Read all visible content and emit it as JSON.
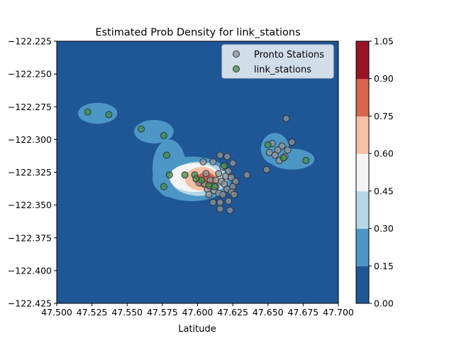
{
  "chart_data": {
    "type": "scatter",
    "title": "Estimated Prob Density for link_stations",
    "xlabel": "Latitude",
    "ylabel": "",
    "xlim": [
      47.5,
      47.7
    ],
    "ylim": [
      -122.425,
      -122.225
    ],
    "x_ticks": [
      "47.500",
      "47.525",
      "47.550",
      "47.575",
      "47.600",
      "47.625",
      "47.650",
      "47.675",
      "47.700"
    ],
    "y_ticks": [
      "−122.225",
      "−122.250",
      "−122.275",
      "−122.300",
      "−122.325",
      "−122.350",
      "−122.375",
      "−122.400",
      "−122.425"
    ],
    "grid": false,
    "legend_position": "top-right",
    "legend": [
      {
        "label": "Pronto Stations",
        "color": "#8f969b"
      },
      {
        "label": "link_stations",
        "color": "#3f8f4a"
      }
    ],
    "colorbar": {
      "ticks": [
        "0.00",
        "0.15",
        "0.30",
        "0.45",
        "0.60",
        "0.75",
        "0.90",
        "1.05"
      ],
      "levels": [
        0,
        0.15,
        0.3,
        0.45,
        0.6,
        0.75,
        0.9,
        1.05
      ],
      "colors": [
        "#1f5696",
        "#4c97c6",
        "#b6d6e7",
        "#f4f4f4",
        "#f6c0a4",
        "#d8654f",
        "#9a1428"
      ]
    },
    "density_blobs": [
      {
        "x": 47.606,
        "y": -122.331,
        "rx": 0.007,
        "ry": 0.006,
        "level": 5
      },
      {
        "x": 47.603,
        "y": -122.33,
        "rx": 0.012,
        "ry": 0.009,
        "level": 4
      },
      {
        "x": 47.598,
        "y": -122.329,
        "rx": 0.018,
        "ry": 0.011,
        "level": 3
      },
      {
        "x": 47.601,
        "y": -122.33,
        "rx": 0.02,
        "ry": 0.013,
        "level": 2
      },
      {
        "x": 47.529,
        "y": -122.28,
        "rx": 0.014,
        "ry": 0.008,
        "level": 1
      },
      {
        "x": 47.569,
        "y": -122.294,
        "rx": 0.014,
        "ry": 0.009,
        "level": 1
      },
      {
        "x": 47.58,
        "y": -122.322,
        "rx": 0.012,
        "ry": 0.022,
        "level": 1
      },
      {
        "x": 47.596,
        "y": -122.33,
        "rx": 0.028,
        "ry": 0.017,
        "level": 1
      },
      {
        "x": 47.655,
        "y": -122.307,
        "rx": 0.01,
        "ry": 0.012,
        "level": 1
      },
      {
        "x": 47.667,
        "y": -122.315,
        "rx": 0.016,
        "ry": 0.008,
        "level": 1
      }
    ],
    "series": [
      {
        "name": "Pronto Stations",
        "points": [
          [
            47.604,
            -122.317
          ],
          [
            47.611,
            -122.317
          ],
          [
            47.616,
            -122.312
          ],
          [
            47.621,
            -122.313
          ],
          [
            47.625,
            -122.318
          ],
          [
            47.618,
            -122.321
          ],
          [
            47.622,
            -122.324
          ],
          [
            47.615,
            -122.326
          ],
          [
            47.62,
            -122.328
          ],
          [
            47.624,
            -122.329
          ],
          [
            47.635,
            -122.327
          ],
          [
            47.606,
            -122.326
          ],
          [
            47.609,
            -122.331
          ],
          [
            47.613,
            -122.331
          ],
          [
            47.617,
            -122.332
          ],
          [
            47.627,
            -122.332
          ],
          [
            47.609,
            -122.336
          ],
          [
            47.613,
            -122.336
          ],
          [
            47.619,
            -122.334
          ],
          [
            47.621,
            -122.338
          ],
          [
            47.625,
            -122.336
          ],
          [
            47.607,
            -122.338
          ],
          [
            47.612,
            -122.339
          ],
          [
            47.615,
            -122.341
          ],
          [
            47.618,
            -122.342
          ],
          [
            47.624,
            -122.34
          ],
          [
            47.626,
            -122.342
          ],
          [
            47.608,
            -122.342
          ],
          [
            47.611,
            -122.348
          ],
          [
            47.616,
            -122.348
          ],
          [
            47.622,
            -122.347
          ],
          [
            47.616,
            -122.353
          ],
          [
            47.623,
            -122.354
          ],
          [
            47.601,
            -122.333
          ],
          [
            47.605,
            -122.334
          ],
          [
            47.663,
            -122.284
          ],
          [
            47.667,
            -122.302
          ],
          [
            47.653,
            -122.303
          ],
          [
            47.66,
            -122.305
          ],
          [
            47.657,
            -122.308
          ],
          [
            47.664,
            -122.308
          ],
          [
            47.651,
            -122.31
          ],
          [
            47.655,
            -122.312
          ],
          [
            47.662,
            -122.313
          ],
          [
            47.658,
            -122.316
          ],
          [
            47.649,
            -122.323
          ]
        ]
      },
      {
        "name": "link_stations",
        "points": [
          [
            47.522,
            -122.279
          ],
          [
            47.537,
            -122.281
          ],
          [
            47.56,
            -122.292
          ],
          [
            47.576,
            -122.297
          ],
          [
            47.578,
            -122.312
          ],
          [
            47.58,
            -122.327
          ],
          [
            47.576,
            -122.336
          ],
          [
            47.591,
            -122.327
          ],
          [
            47.598,
            -122.327
          ],
          [
            47.599,
            -122.33
          ],
          [
            47.603,
            -122.331
          ],
          [
            47.608,
            -122.335
          ],
          [
            47.612,
            -122.336
          ],
          [
            47.619,
            -122.32
          ],
          [
            47.65,
            -122.304
          ],
          [
            47.661,
            -122.314
          ],
          [
            47.677,
            -122.316
          ]
        ]
      }
    ]
  }
}
